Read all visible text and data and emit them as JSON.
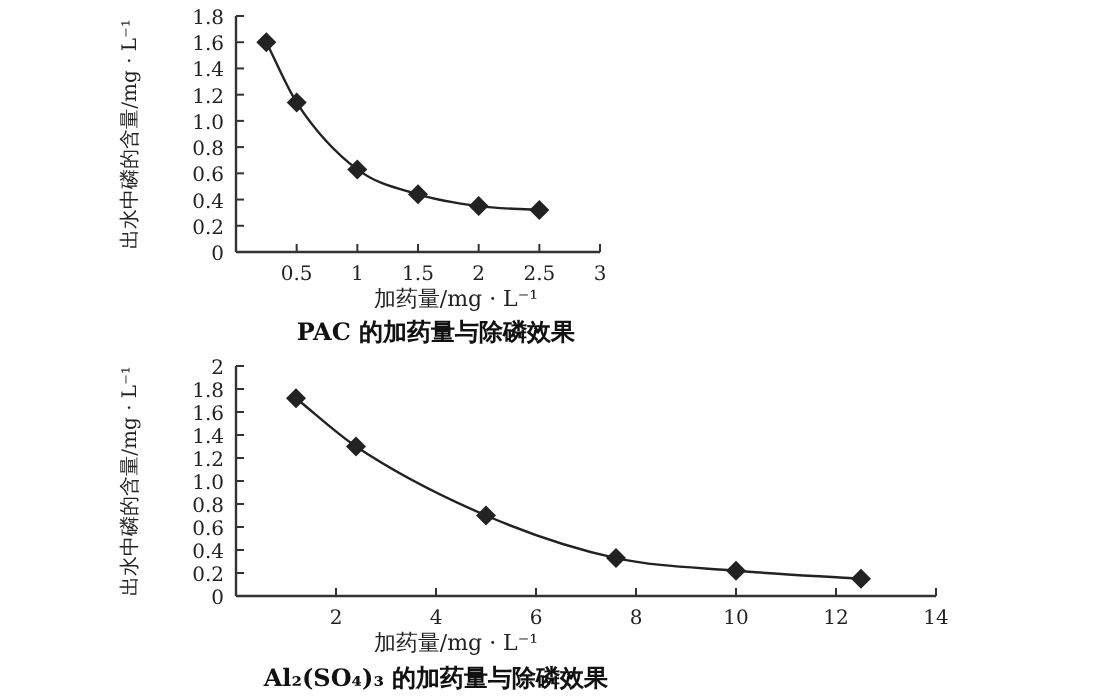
{
  "chart_data": [
    {
      "type": "line",
      "title": "PAC 的加药量与除磷效果",
      "xlabel": "加药量/mg · L⁻¹",
      "ylabel": "出水中磷的含量/mg · L⁻¹",
      "x": [
        0.25,
        0.5,
        1,
        1.5,
        2,
        2.5
      ],
      "series": [
        {
          "color": "#222222",
          "values": [
            1.6,
            1.14,
            0.63,
            0.44,
            0.35,
            0.32
          ]
        }
      ],
      "xlim": [
        0,
        3
      ],
      "xticks": [
        0.5,
        1,
        1.5,
        2,
        2.5,
        3
      ],
      "ylim": [
        0,
        1.8
      ],
      "yticks": [
        0,
        0.2,
        0.4,
        0.6,
        0.8,
        {
          "value": 1,
          "label": "1.0"
        },
        1.2,
        1.4,
        1.6,
        1.8
      ],
      "marker": "diamond",
      "line_style": "solid",
      "grid": false
    },
    {
      "type": "line",
      "title": "Al₂(SO₄)₃ 的加药量与除磷效果",
      "xlabel": "加药量/mg · L⁻¹",
      "ylabel": "出水中磷的含量/mg · L⁻¹",
      "x": [
        1.2,
        2.4,
        5,
        7.6,
        10,
        12.5
      ],
      "series": [
        {
          "color": "#222222",
          "values": [
            1.72,
            1.3,
            0.7,
            0.33,
            0.22,
            0.15
          ]
        }
      ],
      "xlim": [
        0,
        14
      ],
      "xticks": [
        2,
        4,
        6,
        8,
        10,
        12,
        14
      ],
      "ylim": [
        0,
        2
      ],
      "yticks": [
        0,
        0.2,
        0.4,
        0.6,
        0.8,
        {
          "value": 1,
          "label": "1.0"
        },
        1.2,
        1.4,
        1.6,
        1.8,
        2
      ],
      "marker": "diamond",
      "line_style": "solid",
      "grid": false
    }
  ]
}
